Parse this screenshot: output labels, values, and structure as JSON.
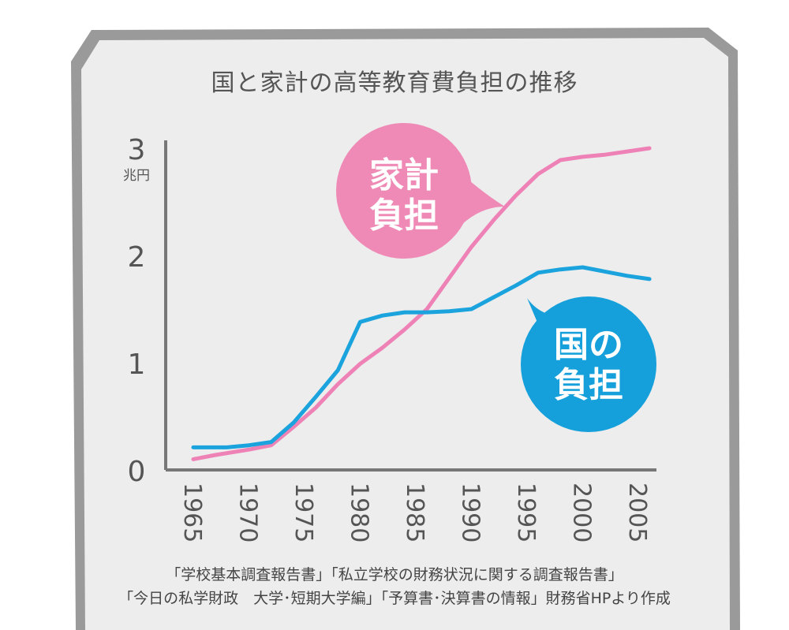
{
  "chart_data": {
    "type": "line",
    "title": "国と家計の高等教育費負担の推移",
    "ylabel": "兆円",
    "ylim": [
      0,
      3
    ],
    "y_ticks": [
      "0",
      "1",
      "2",
      "3"
    ],
    "x_ticks": [
      "1965",
      "1970",
      "1975",
      "1980",
      "1985",
      "1990",
      "1995",
      "2000",
      "2005"
    ],
    "series": [
      {
        "name": "家計負担",
        "color": "#ee82b6",
        "x": [
          1965,
          1967,
          1970,
          1972,
          1974,
          1976,
          1978,
          1980,
          1982,
          1984,
          1986,
          1988,
          1990,
          1992,
          1994,
          1996,
          1998,
          2000,
          2002,
          2004,
          2006
        ],
        "y": [
          0.1,
          0.14,
          0.19,
          0.23,
          0.4,
          0.58,
          0.8,
          0.99,
          1.14,
          1.31,
          1.5,
          1.79,
          2.08,
          2.33,
          2.56,
          2.76,
          2.89,
          2.92,
          2.94,
          2.97,
          3.0
        ]
      },
      {
        "name": "国の負担",
        "color": "#1aa3dd",
        "x": [
          1965,
          1968,
          1970,
          1972,
          1974,
          1976,
          1978,
          1980,
          1982,
          1984,
          1986,
          1988,
          1990,
          1992,
          1994,
          1996,
          1998,
          2000,
          2002,
          2004,
          2006
        ],
        "y": [
          0.21,
          0.21,
          0.23,
          0.26,
          0.44,
          0.68,
          0.93,
          1.38,
          1.44,
          1.47,
          1.47,
          1.48,
          1.5,
          1.61,
          1.72,
          1.84,
          1.87,
          1.89,
          1.85,
          1.81,
          1.78
        ]
      }
    ],
    "legend_placement": "callout bubbles beside lines",
    "grid": false
  },
  "callouts": {
    "household": {
      "line1": "家計",
      "line2": "負担",
      "color": "#ee8ab5"
    },
    "national": {
      "line1": "国の",
      "line2": "負担",
      "color": "#15a0db"
    }
  },
  "source": {
    "line1": "「学校基本調査報告書」「私立学校の財務状況に関する調査報告書」",
    "line2": "「今日の私学財政　大学･短期大学編」「予算書･決算書の情報」財務省HPより作成"
  },
  "colors": {
    "frame": "#9a9a9a",
    "panel": "#ededed",
    "axis": "#777777",
    "text": "#555555"
  }
}
